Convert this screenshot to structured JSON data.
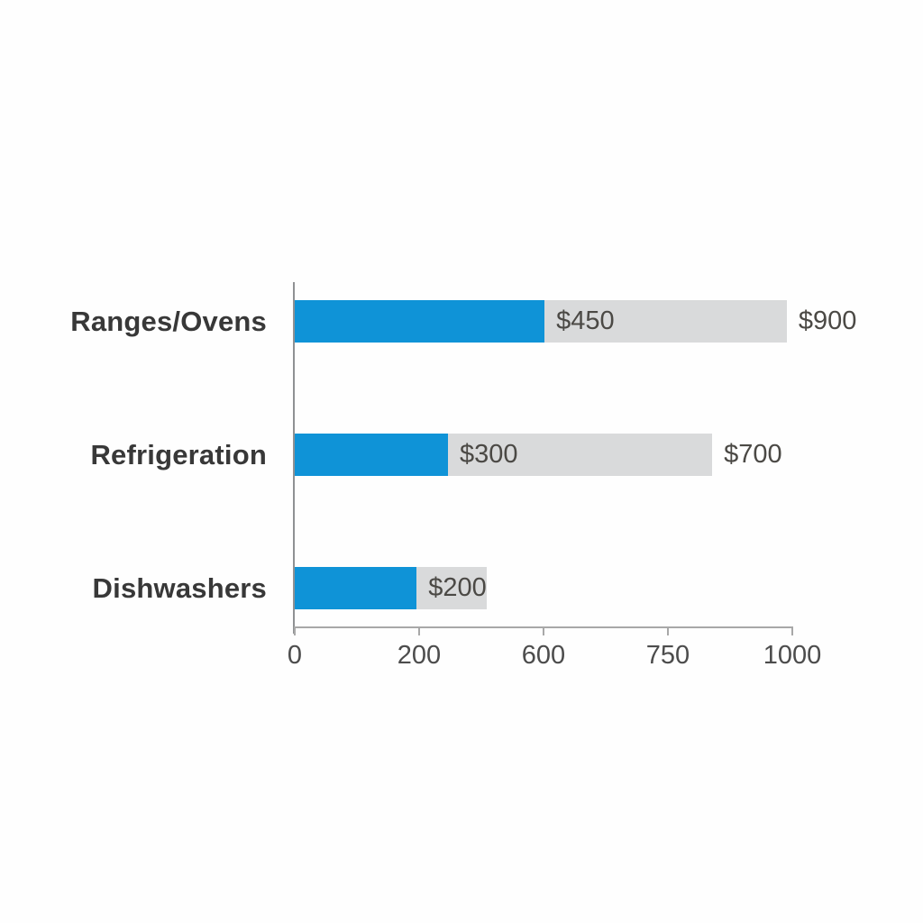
{
  "colors": {
    "blue_bar": "#0f93d7",
    "gray_bar": "#d9dadb",
    "category_text": "#383838",
    "value_text": "#4b4945",
    "tick_text": "#4c4c4c",
    "axis_line": "#a8a8a8"
  },
  "chart_data": {
    "type": "bar",
    "orientation": "horizontal",
    "title": "",
    "xlabel": "",
    "ylabel": "",
    "grid": false,
    "legend": false,
    "xlim": [
      0,
      1000
    ],
    "x_tick_labels": [
      "0",
      "200",
      "600",
      "750",
      "1000"
    ],
    "categories": [
      "Ranges/Ovens",
      "Refrigeration",
      "Dishwashers"
    ],
    "series": [
      {
        "name": "blue-segment",
        "color": "#0f93d7",
        "bar_end_values": [
          500,
          305,
          245
        ],
        "value_labels": [
          "$450",
          "$300",
          "$200"
        ]
      },
      {
        "name": "gray-segment",
        "color": "#d9dadb",
        "bar_end_values": [
          980,
          835,
          385
        ],
        "value_labels": [
          "$900",
          "$700",
          ""
        ]
      }
    ],
    "rows": [
      {
        "category": "Ranges/Ovens",
        "inner_label": "$450",
        "outer_label": "$900",
        "blue_width_pct": 50.2,
        "gray_width_pct": 48.7
      },
      {
        "category": "Refrigeration",
        "inner_label": "$300",
        "outer_label": "$700",
        "blue_width_pct": 30.8,
        "gray_width_pct": 53.1
      },
      {
        "category": "Dishwashers",
        "inner_label": "$200",
        "outer_label": "",
        "blue_width_pct": 24.5,
        "gray_width_pct": 14.1
      }
    ],
    "x_ticks": [
      {
        "label": "0",
        "pos_pct": 0
      },
      {
        "label": "200",
        "pos_pct": 25
      },
      {
        "label": "600",
        "pos_pct": 50
      },
      {
        "label": "750",
        "pos_pct": 75
      },
      {
        "label": "1000",
        "pos_pct": 100
      }
    ]
  }
}
